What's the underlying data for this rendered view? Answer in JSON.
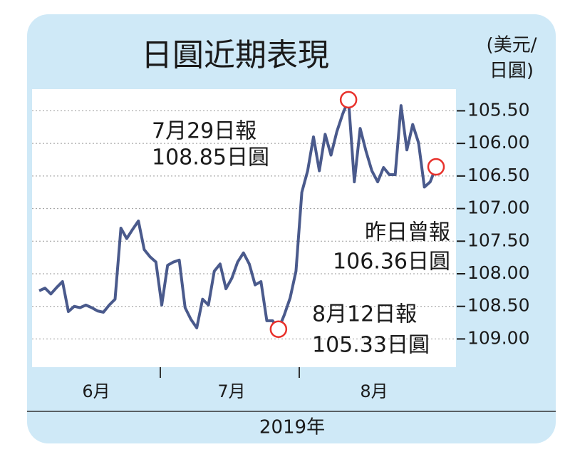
{
  "chart_data": {
    "type": "line",
    "title": "日圓近期表現",
    "y_label": [
      "(美元/",
      "日圓)"
    ],
    "x_label": "2019年",
    "months": [
      "6月",
      "7月",
      "8月"
    ],
    "series": [
      {
        "color": "#4a5a8c",
        "values": [
          108.26,
          108.22,
          108.31,
          108.21,
          108.12,
          108.58,
          108.5,
          108.52,
          108.48,
          108.52,
          108.57,
          108.59,
          108.48,
          108.39,
          107.3,
          107.46,
          107.32,
          107.19,
          107.63,
          107.74,
          107.82,
          108.48,
          107.87,
          107.82,
          107.79,
          108.52,
          108.7,
          108.83,
          108.39,
          108.48,
          107.96,
          107.85,
          108.23,
          108.07,
          107.82,
          107.68,
          107.85,
          108.17,
          108.12,
          108.72,
          108.72,
          108.85,
          108.63,
          108.37,
          107.96,
          106.75,
          106.42,
          105.9,
          106.42,
          105.86,
          106.18,
          105.82,
          105.55,
          105.33,
          106.59,
          105.77,
          106.12,
          106.42,
          106.59,
          106.37,
          106.48,
          106.48,
          105.42,
          106.1,
          105.71,
          105.99,
          106.67,
          106.59,
          106.36
        ]
      }
    ],
    "ylim": [
      105.2,
      109.4
    ],
    "inverted_y": true,
    "yticks": [
      {
        "value": 105.5,
        "label": "105.50"
      },
      {
        "value": 106,
        "label": "106.00"
      },
      {
        "value": 106.5,
        "label": "106.50"
      },
      {
        "value": 107,
        "label": "107.00"
      },
      {
        "value": 107.5,
        "label": "107.50"
      },
      {
        "value": 108,
        "label": "108.00"
      },
      {
        "value": 108.5,
        "label": "108.50"
      },
      {
        "value": 109,
        "label": "109.00"
      }
    ],
    "grid": true,
    "marker_color": "#e8312b",
    "annotations": [
      {
        "text": [
          "7月29日報",
          "108.85日圓"
        ],
        "value": 108.85
      },
      {
        "text": [
          "8月12日報",
          "105.33日圓"
        ],
        "value": 105.33
      },
      {
        "text": [
          "昨日曾報",
          "106.36日圓"
        ],
        "value": 106.36
      }
    ]
  }
}
